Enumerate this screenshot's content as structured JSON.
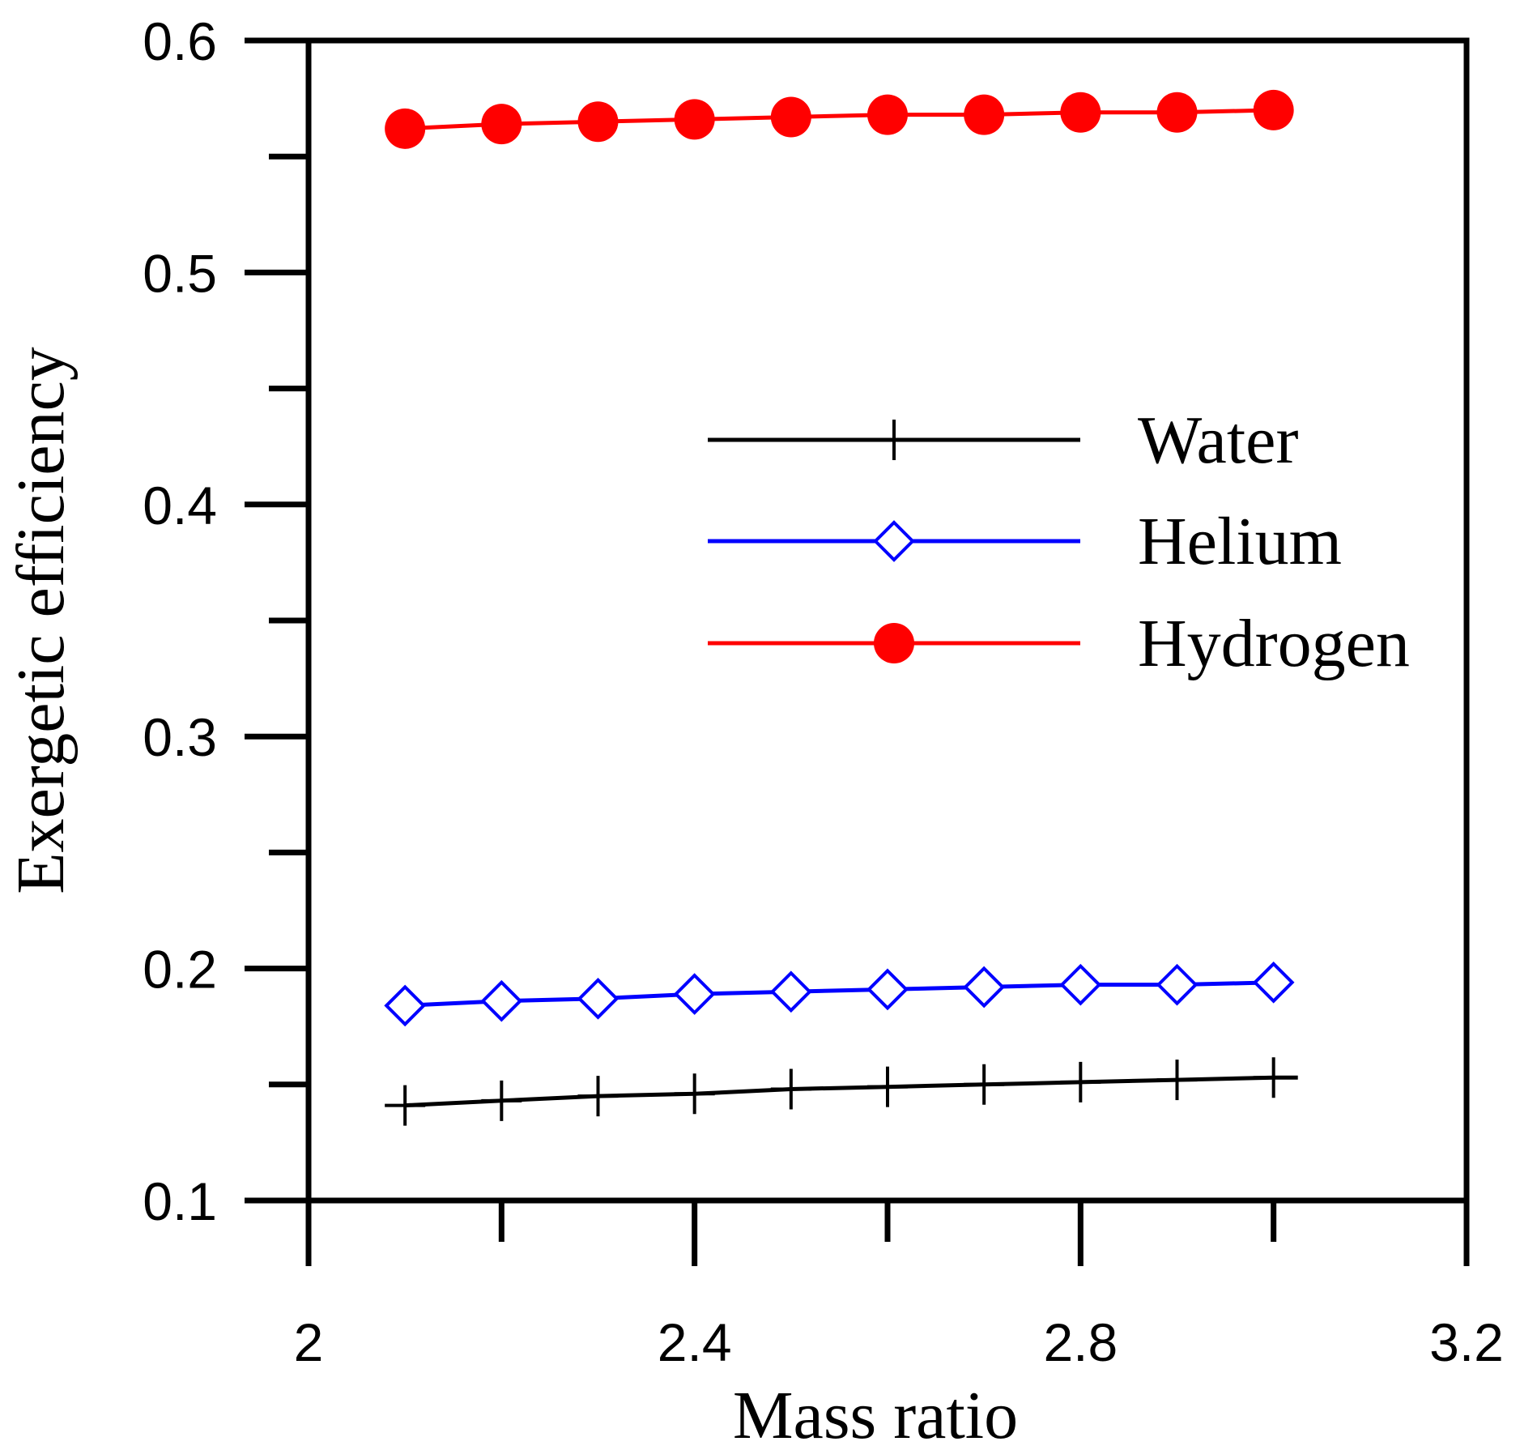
{
  "chart_data": {
    "type": "line",
    "title": "",
    "xlabel": "Mass ratio",
    "ylabel": "Exergetic efficiency",
    "xlim": [
      2,
      3.2
    ],
    "ylim": [
      0.1,
      0.6
    ],
    "xticks": [
      2,
      2.4,
      2.8,
      3.2
    ],
    "xtick_labels": [
      "2",
      "2.4",
      "2.8",
      "3.2"
    ],
    "x_minor_ticks": [
      2.2,
      2.6,
      3.0
    ],
    "yticks": [
      0.1,
      0.2,
      0.3,
      0.4,
      0.5,
      0.6
    ],
    "ytick_labels": [
      "0.1",
      "0.2",
      "0.3",
      "0.4",
      "0.5",
      "0.6"
    ],
    "y_minor_ticks": [
      0.15,
      0.25,
      0.35,
      0.45,
      0.55
    ],
    "grid": false,
    "legend_position": "center-right",
    "x": [
      2.1,
      2.2,
      2.3,
      2.4,
      2.5,
      2.6,
      2.7,
      2.8,
      2.9,
      3.0
    ],
    "series": [
      {
        "name": "Water",
        "color": "#000000",
        "marker": "plus",
        "values": [
          0.141,
          0.143,
          0.145,
          0.146,
          0.148,
          0.149,
          0.15,
          0.151,
          0.152,
          0.153
        ]
      },
      {
        "name": "Helium",
        "color": "#0000ff",
        "marker": "diamond-open",
        "values": [
          0.184,
          0.186,
          0.187,
          0.189,
          0.19,
          0.191,
          0.192,
          0.193,
          0.193,
          0.194
        ]
      },
      {
        "name": "Hydrogen",
        "color": "#ff0000",
        "marker": "circle-filled",
        "values": [
          0.562,
          0.564,
          0.565,
          0.566,
          0.567,
          0.568,
          0.568,
          0.569,
          0.569,
          0.57
        ]
      }
    ]
  }
}
